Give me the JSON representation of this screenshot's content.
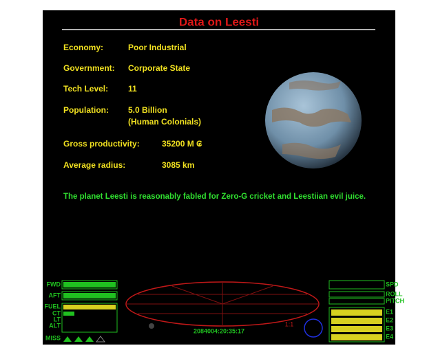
{
  "title": "Data on Leesti",
  "fields": [
    {
      "label": "Economy:",
      "value": [
        "Poor Industrial"
      ]
    },
    {
      "label": "Government:",
      "value": [
        "Corporate State"
      ]
    },
    {
      "label": "Tech Level:",
      "value": [
        "11"
      ]
    },
    {
      "label": "Population:",
      "value": [
        "5.0 Billion",
        "(Human Colonials)"
      ]
    },
    {
      "label": "Gross productivity:",
      "value": [
        "35200 M ₢"
      ]
    },
    {
      "label": "Average radius:",
      "value": [
        "3085 km"
      ]
    }
  ],
  "description": "The planet Leesti is reasonably fabled for Zero-G cricket and Leestiian evil juice.",
  "hud": {
    "left_labels": [
      "FWD",
      "AFT",
      "FUEL",
      "CT",
      "LT",
      "ALT",
      "MISS"
    ],
    "right_labels": [
      "SPD",
      "ROLL",
      "PITCH",
      "E1",
      "E2",
      "E3",
      "E4"
    ],
    "clock": "2084004:20:35:17",
    "scale": "1:1"
  }
}
